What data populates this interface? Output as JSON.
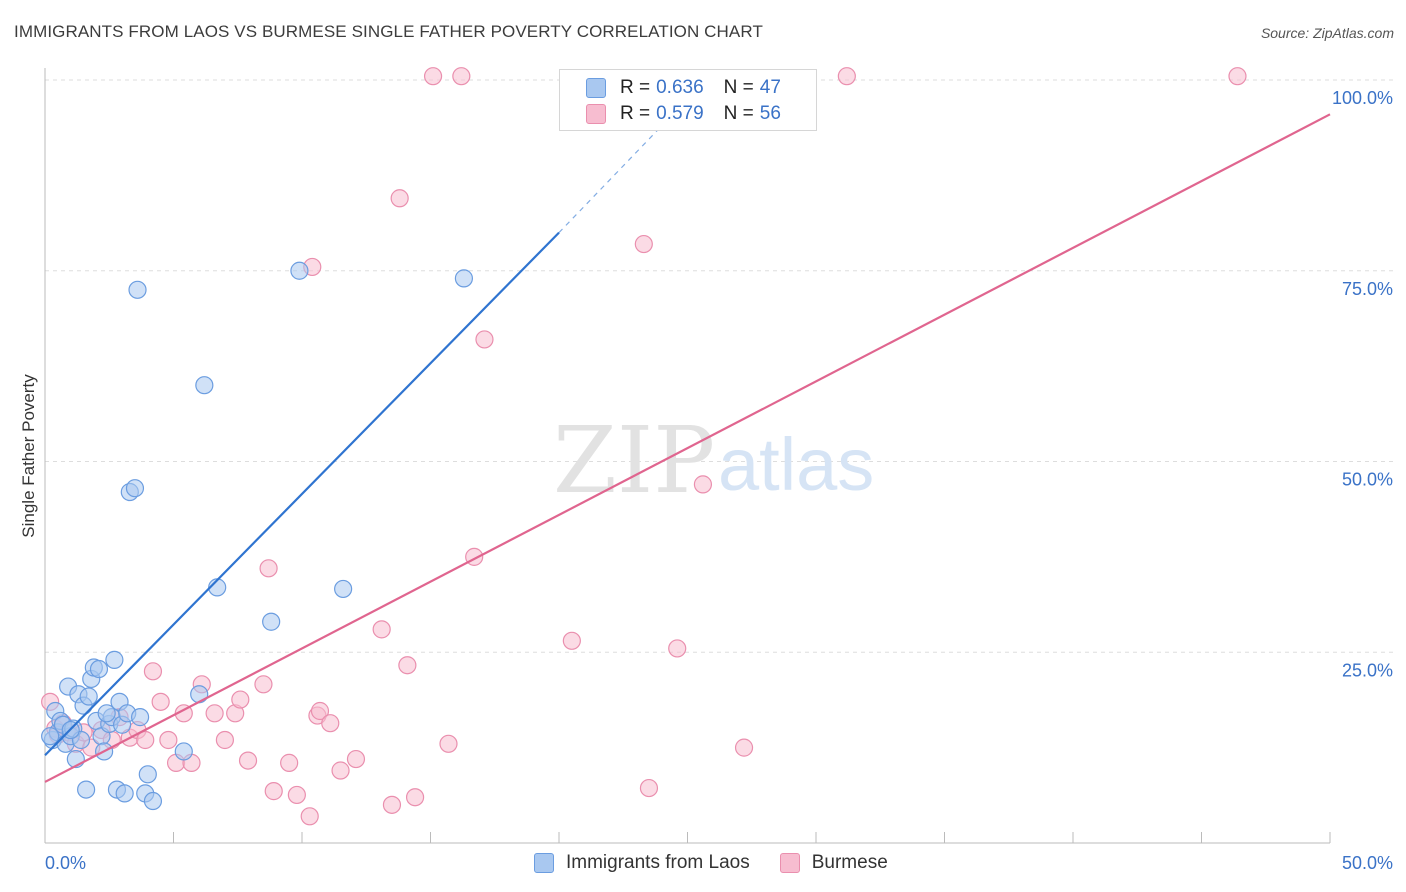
{
  "header": {
    "title": "IMMIGRANTS FROM LAOS VS BURMESE SINGLE FATHER POVERTY CORRELATION CHART",
    "source": "Source: ZipAtlas.com"
  },
  "watermark": {
    "zip": "ZIP",
    "atlas": "atlas"
  },
  "legend": {
    "r_label": "R =",
    "n_label": "N =",
    "entries": [
      {
        "r": "0.636",
        "n": "47"
      },
      {
        "r": "0.579",
        "n": "56"
      }
    ]
  },
  "bottom_legend": [
    "Immigrants from Laos",
    "Burmese"
  ],
  "colors": {
    "laos_fill": "#a9c8f0",
    "laos_stroke": "#6b9de0",
    "laos_line": "#2f74d0",
    "burmese_fill": "#f7bdd0",
    "burmese_stroke": "#ea8fae",
    "burmese_line": "#e0658f",
    "tick_label": "#3a72c7",
    "grid": "#dddddd"
  },
  "chart_data": {
    "type": "scatter",
    "title": "IMMIGRANTS FROM LAOS VS BURMESE SINGLE FATHER POVERTY CORRELATION CHART",
    "ylabel": "Single Father Poverty",
    "xlabel": "",
    "xlim": [
      0,
      50
    ],
    "ylim": [
      0,
      100
    ],
    "x_tick_labels": [
      "0.0%",
      "50.0%"
    ],
    "y_ticks": [
      25,
      50,
      75,
      100
    ],
    "y_tick_labels": [
      "25.0%",
      "50.0%",
      "75.0%",
      "100.0%"
    ],
    "grid": true,
    "legend_position": "top-center",
    "series": [
      {
        "name": "Immigrants from Laos",
        "r": 0.636,
        "n": 47,
        "trend": {
          "x": [
            0,
            20
          ],
          "y": [
            11.5,
            80
          ],
          "dashed_extension": {
            "x": [
              20,
              24
            ],
            "y": [
              80,
              94
            ]
          }
        },
        "points": [
          [
            0.3,
            13.5
          ],
          [
            0.5,
            14.5
          ],
          [
            0.4,
            17.3
          ],
          [
            0.6,
            16.0
          ],
          [
            0.8,
            13.0
          ],
          [
            0.9,
            20.5
          ],
          [
            0.7,
            15.5
          ],
          [
            1.0,
            14.0
          ],
          [
            1.2,
            11.0
          ],
          [
            1.1,
            15.0
          ],
          [
            1.3,
            19.5
          ],
          [
            1.4,
            13.5
          ],
          [
            1.5,
            18.0
          ],
          [
            1.6,
            7.0
          ],
          [
            1.7,
            19.2
          ],
          [
            1.8,
            21.5
          ],
          [
            1.9,
            23.0
          ],
          [
            2.0,
            16.0
          ],
          [
            2.1,
            22.8
          ],
          [
            2.2,
            14.0
          ],
          [
            2.3,
            12.0
          ],
          [
            2.5,
            15.6
          ],
          [
            2.6,
            16.5
          ],
          [
            2.7,
            24.0
          ],
          [
            2.8,
            7.0
          ],
          [
            2.9,
            18.5
          ],
          [
            3.0,
            15.5
          ],
          [
            3.1,
            6.5
          ],
          [
            3.2,
            17.0
          ],
          [
            3.3,
            46.0
          ],
          [
            3.5,
            46.5
          ],
          [
            3.6,
            72.5
          ],
          [
            3.7,
            16.5
          ],
          [
            3.9,
            6.5
          ],
          [
            4.0,
            9.0
          ],
          [
            4.2,
            5.5
          ],
          [
            5.4,
            12.0
          ],
          [
            6.0,
            19.5
          ],
          [
            6.2,
            60.0
          ],
          [
            6.7,
            33.5
          ],
          [
            8.8,
            29.0
          ],
          [
            9.9,
            75.0
          ],
          [
            11.6,
            33.3
          ],
          [
            16.3,
            74.0
          ],
          [
            0.2,
            14.0
          ],
          [
            1.0,
            14.8
          ],
          [
            2.4,
            17.0
          ]
        ]
      },
      {
        "name": "Burmese",
        "r": 0.579,
        "n": 56,
        "trend": {
          "x": [
            0,
            50
          ],
          "y": [
            8.0,
            95.5
          ]
        },
        "points": [
          [
            0.2,
            18.5
          ],
          [
            0.4,
            15.0
          ],
          [
            0.7,
            15.7
          ],
          [
            0.9,
            14.5
          ],
          [
            1.2,
            13.0
          ],
          [
            1.5,
            14.5
          ],
          [
            1.8,
            12.5
          ],
          [
            2.2,
            14.8
          ],
          [
            2.6,
            13.5
          ],
          [
            2.9,
            16.5
          ],
          [
            3.3,
            13.8
          ],
          [
            3.6,
            14.8
          ],
          [
            3.9,
            13.5
          ],
          [
            4.2,
            22.5
          ],
          [
            4.5,
            18.5
          ],
          [
            4.8,
            13.5
          ],
          [
            5.1,
            10.5
          ],
          [
            5.4,
            17.0
          ],
          [
            5.7,
            10.5
          ],
          [
            6.1,
            20.8
          ],
          [
            6.6,
            17.0
          ],
          [
            7.0,
            13.5
          ],
          [
            7.4,
            17.0
          ],
          [
            7.6,
            18.8
          ],
          [
            7.9,
            10.8
          ],
          [
            8.5,
            20.8
          ],
          [
            8.7,
            36.0
          ],
          [
            8.9,
            6.8
          ],
          [
            9.5,
            10.5
          ],
          [
            9.8,
            6.3
          ],
          [
            10.3,
            3.5
          ],
          [
            10.6,
            16.7
          ],
          [
            10.4,
            75.5
          ],
          [
            10.7,
            17.3
          ],
          [
            11.1,
            15.7
          ],
          [
            11.5,
            9.5
          ],
          [
            12.1,
            11.0
          ],
          [
            13.1,
            28.0
          ],
          [
            13.5,
            5.0
          ],
          [
            13.8,
            84.5
          ],
          [
            14.1,
            23.3
          ],
          [
            14.4,
            6.0
          ],
          [
            15.1,
            100.5
          ],
          [
            15.7,
            13.0
          ],
          [
            16.2,
            100.5
          ],
          [
            16.7,
            37.5
          ],
          [
            17.1,
            66.0
          ],
          [
            20.5,
            26.5
          ],
          [
            23.5,
            7.2
          ],
          [
            23.3,
            78.5
          ],
          [
            24.6,
            25.5
          ],
          [
            25.6,
            47.0
          ],
          [
            27.2,
            12.5
          ],
          [
            31.2,
            100.5
          ],
          [
            46.4,
            100.5
          ],
          [
            0.5,
            14.2
          ]
        ]
      }
    ]
  }
}
